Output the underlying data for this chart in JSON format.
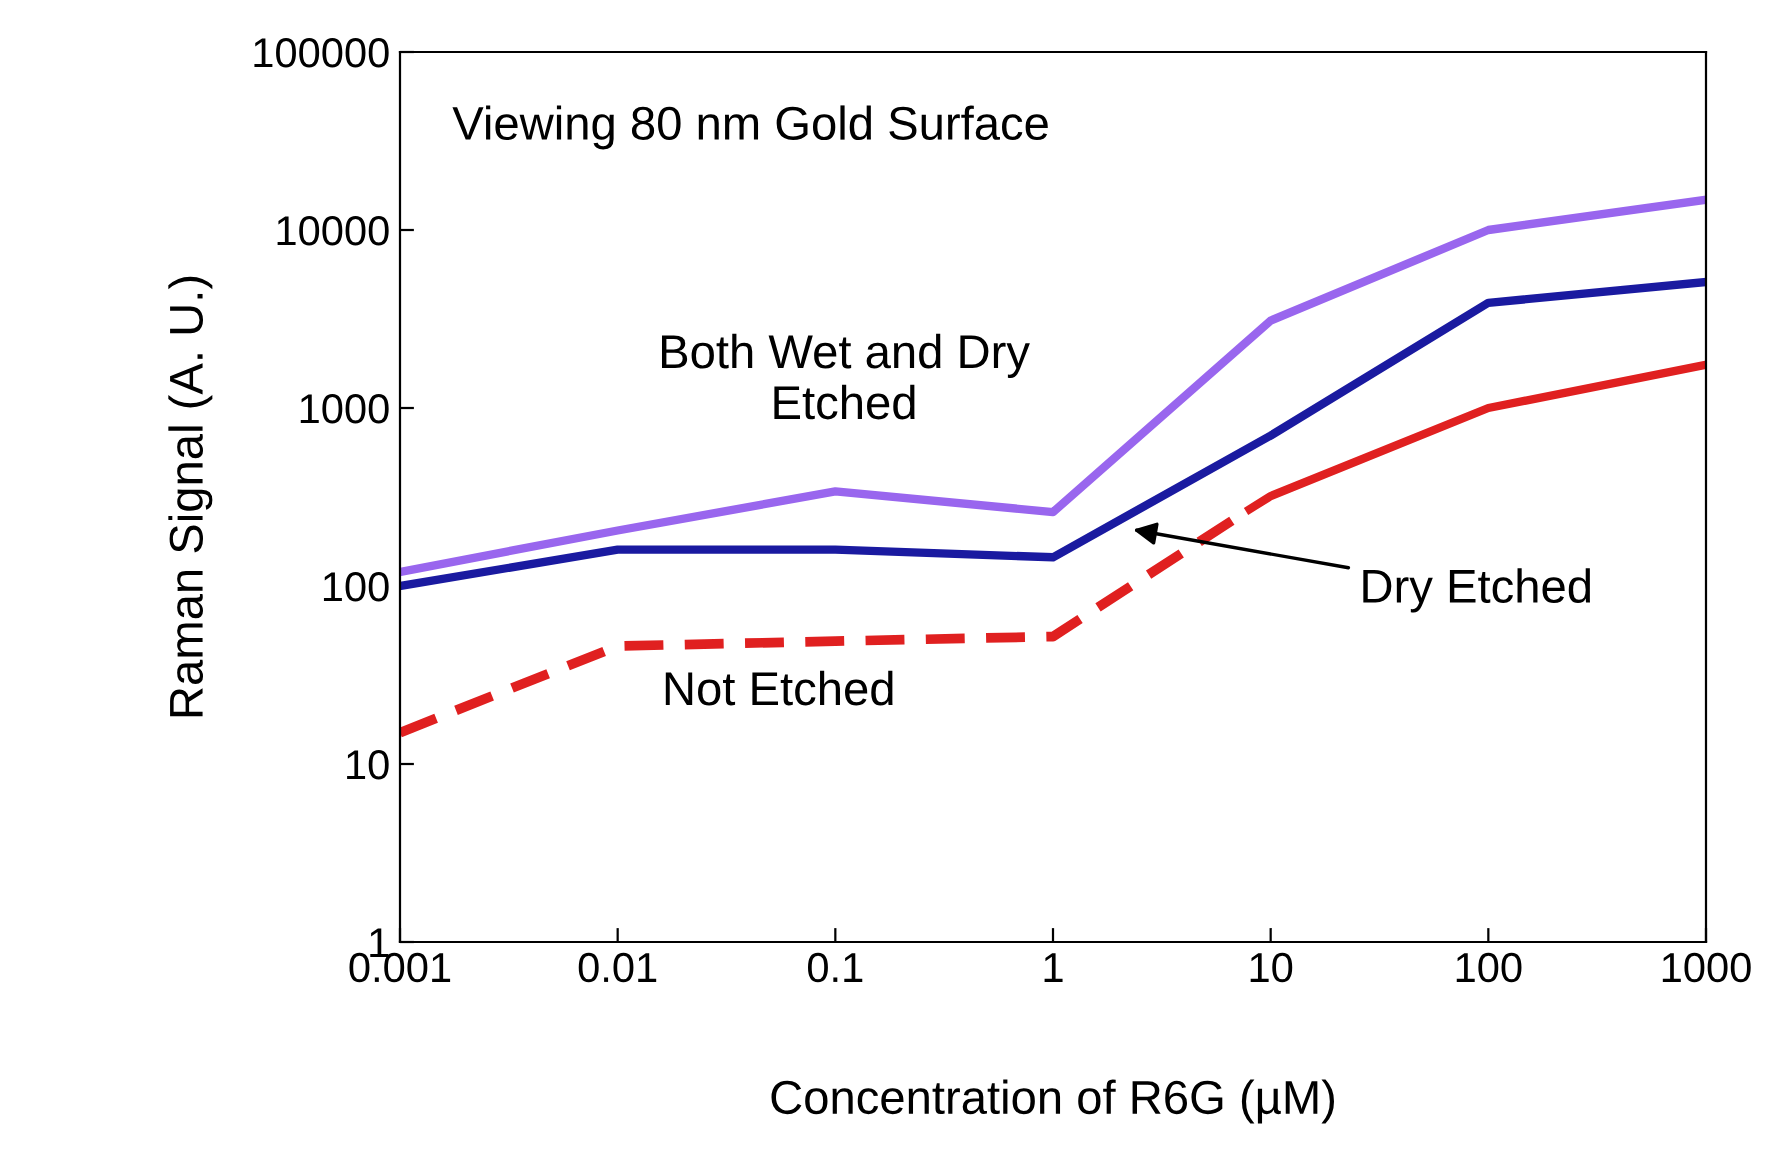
{
  "chart_data": {
    "type": "line",
    "title": "Viewing 80 nm Gold Surface",
    "xlabel": "Concentration of R6G (µM)",
    "ylabel": "Raman Signal (A. U.)",
    "log": "xy",
    "xlim": [
      0.001,
      1000
    ],
    "ylim": [
      1,
      100000
    ],
    "xticks": [
      0.001,
      0.01,
      0.1,
      1,
      10,
      100,
      1000
    ],
    "yticks": [
      1,
      10,
      100,
      1000,
      10000,
      100000
    ],
    "grid": false,
    "legend": false,
    "marker": "none",
    "series": [
      {
        "color": "#9966ee",
        "x": [
          0.001,
          0.01,
          0.1,
          1,
          10,
          100,
          1000
        ],
        "values": [
          120,
          205,
          340,
          260,
          3100,
          10000,
          14800
        ]
      },
      {
        "color": "#1a1aa0",
        "x": [
          0.001,
          0.01,
          0.1,
          1,
          10,
          100,
          1000
        ],
        "values": [
          100,
          160,
          160,
          145,
          700,
          3900,
          5100
        ]
      },
      {
        "color": "#e02020",
        "line_style": "dashed",
        "x": [
          0.001,
          0.01,
          0.1,
          1,
          8
        ],
        "values": [
          15,
          46,
          49,
          52,
          270
        ]
      },
      {
        "color": "#e02020",
        "line_style": "solid",
        "x": [
          8,
          10,
          100,
          1000
        ],
        "values": [
          270,
          320,
          1000,
          1750
        ]
      }
    ],
    "annotations": [
      "Both Wet and Dry\nEtched",
      "Not Etched",
      {
        "text": "Dry Etched",
        "x": 2.2,
        "y": 210
      }
    ]
  }
}
